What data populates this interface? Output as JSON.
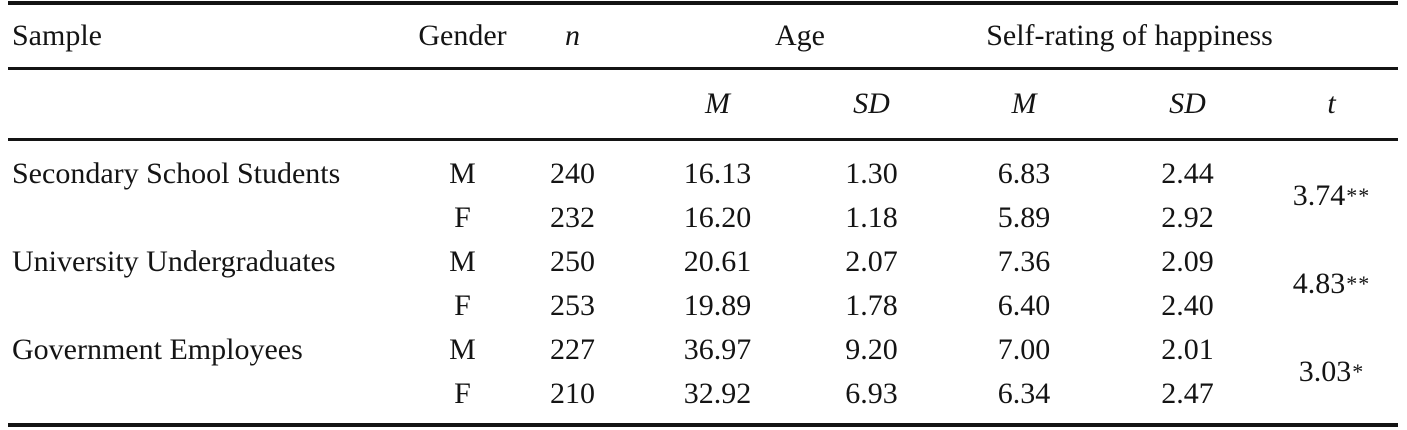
{
  "colors": {
    "background": "#ffffff",
    "text": "#141414",
    "rule": "#141414"
  },
  "table": {
    "headers": {
      "sample": "Sample",
      "gender": "Gender",
      "n": "n",
      "age": "Age",
      "happiness": "Self-rating of happiness",
      "age_m": "M",
      "age_sd": "SD",
      "hap_m": "M",
      "hap_sd": "SD",
      "t": "t"
    },
    "groups": [
      {
        "sample": "Secondary School Students",
        "t": "3.74",
        "t_sig": "**",
        "rows": [
          {
            "gender": "M",
            "n": "240",
            "age_m": "16.13",
            "age_sd": "1.30",
            "hap_m": "6.83",
            "hap_sd": "2.44"
          },
          {
            "gender": "F",
            "n": "232",
            "age_m": "16.20",
            "age_sd": "1.18",
            "hap_m": "5.89",
            "hap_sd": "2.92"
          }
        ]
      },
      {
        "sample": "University Undergraduates",
        "t": "4.83",
        "t_sig": "**",
        "rows": [
          {
            "gender": "M",
            "n": "250",
            "age_m": "20.61",
            "age_sd": "2.07",
            "hap_m": "7.36",
            "hap_sd": "2.09"
          },
          {
            "gender": "F",
            "n": "253",
            "age_m": "19.89",
            "age_sd": "1.78",
            "hap_m": "6.40",
            "hap_sd": "2.40"
          }
        ]
      },
      {
        "sample": "Government Employees",
        "t": "3.03",
        "t_sig": "*",
        "rows": [
          {
            "gender": "M",
            "n": "227",
            "age_m": "36.97",
            "age_sd": "9.20",
            "hap_m": "7.00",
            "hap_sd": "2.01"
          },
          {
            "gender": "F",
            "n": "210",
            "age_m": "32.92",
            "age_sd": "6.93",
            "hap_m": "6.34",
            "hap_sd": "2.47"
          }
        ]
      }
    ]
  }
}
